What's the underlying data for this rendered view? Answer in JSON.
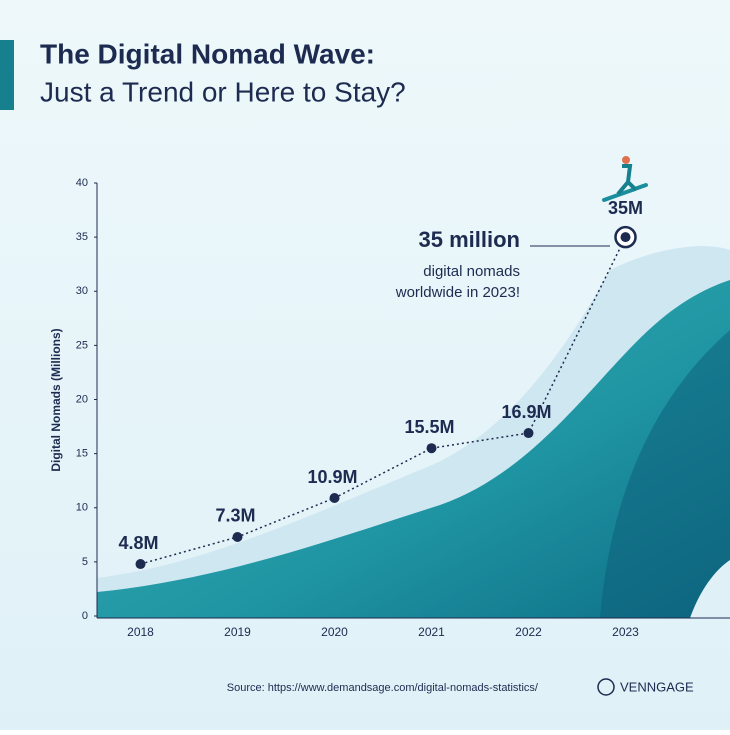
{
  "chart_data": {
    "type": "line",
    "title": "The Digital Nomad Wave:",
    "subtitle": "Just a Trend or Here to Stay?",
    "y_label": "Digital Nomads (Millions)",
    "categories": [
      "2018",
      "2019",
      "2020",
      "2021",
      "2022",
      "2023"
    ],
    "values": [
      4.8,
      7.3,
      10.9,
      15.5,
      16.9,
      35
    ],
    "value_labels": [
      "4.8M",
      "7.3M",
      "10.9M",
      "15.5M",
      "16.9M",
      "35M"
    ],
    "color": "#1d2b50",
    "ylim": [
      0,
      40
    ],
    "yticks": [
      0,
      5,
      10,
      15,
      20,
      25,
      30,
      35,
      40
    ],
    "grid": false,
    "annotation": {
      "headline": "35 million",
      "lines": [
        "digital nomads",
        "worldwide in 2023!"
      ]
    },
    "source": "Source: https://www.demandsage.com/digital-nomads-statistics/",
    "brand": "VENNGAGE"
  }
}
